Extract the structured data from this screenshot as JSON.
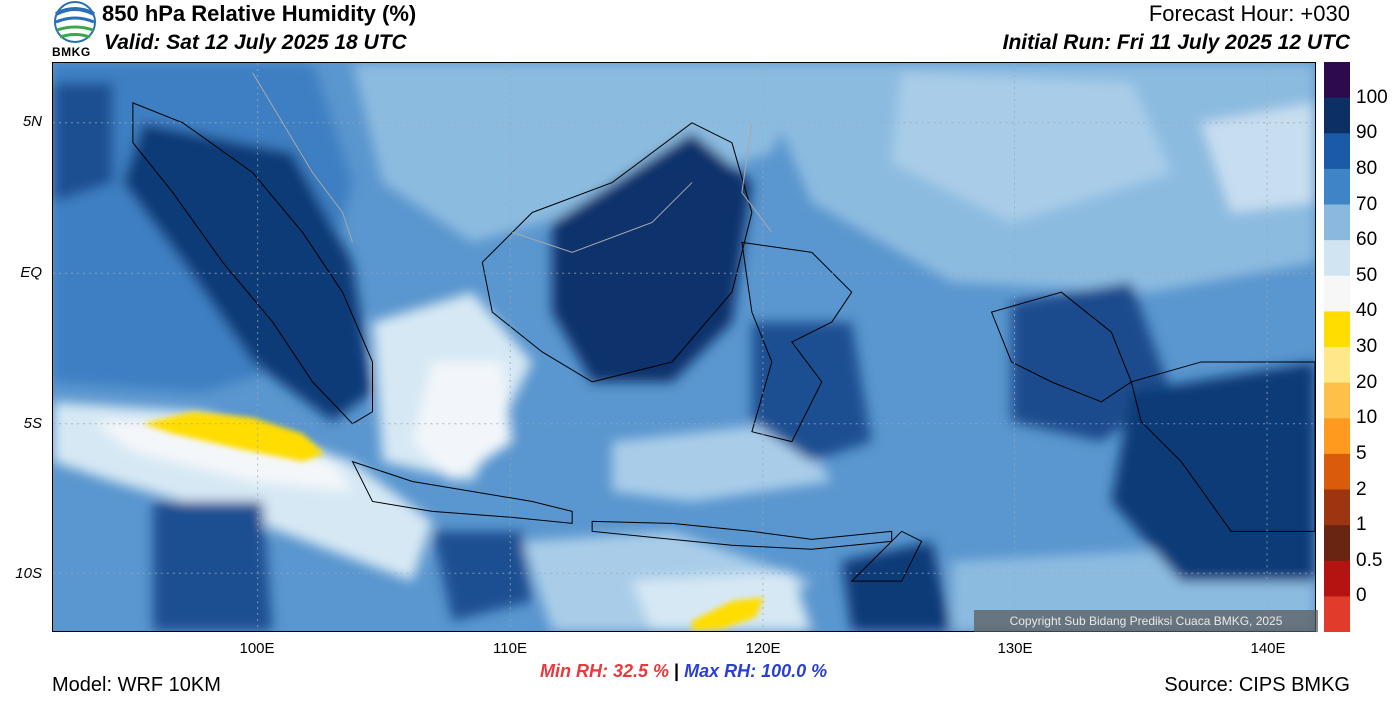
{
  "header": {
    "title": "850 hPa Relative Humidity (%)",
    "valid": "Valid: Sat 12 July 2025 18 UTC",
    "forecast_hour": "Forecast Hour: +030",
    "initial_run": "Initial Run: Fri 11 July 2025 12 UTC",
    "logo_text": "BMKG"
  },
  "axes": {
    "lat_labels": [
      "5N",
      "EQ",
      "5S",
      "10S"
    ],
    "lon_labels": [
      "100E",
      "110E",
      "120E",
      "130E",
      "140E"
    ]
  },
  "colorbar": {
    "labels": [
      "100",
      "90",
      "80",
      "70",
      "60",
      "50",
      "40",
      "30",
      "20",
      "10",
      "5",
      "2",
      "1",
      "0.5",
      "0"
    ],
    "colors": [
      "#2d0a4e",
      "#0c2f66",
      "#1b5aa6",
      "#3d85c6",
      "#8ab8de",
      "#d0e4f2",
      "#f7f7f7",
      "#ffdd00",
      "#ffe88a",
      "#ffc04a",
      "#ff9a1f",
      "#d95b0b",
      "#9c3510",
      "#6a2412",
      "#b51212",
      "#e03b2b"
    ]
  },
  "footer": {
    "model": "Model: WRF 10KM",
    "min_rh": "Min RH:  32.5 %",
    "separator": "|",
    "max_rh": "Max RH: 100.0 %",
    "source": "Source: CIPS BMKG",
    "copyright": "Copyright Sub Bidang Prediksi Cuaca BMKG, 2025"
  }
}
